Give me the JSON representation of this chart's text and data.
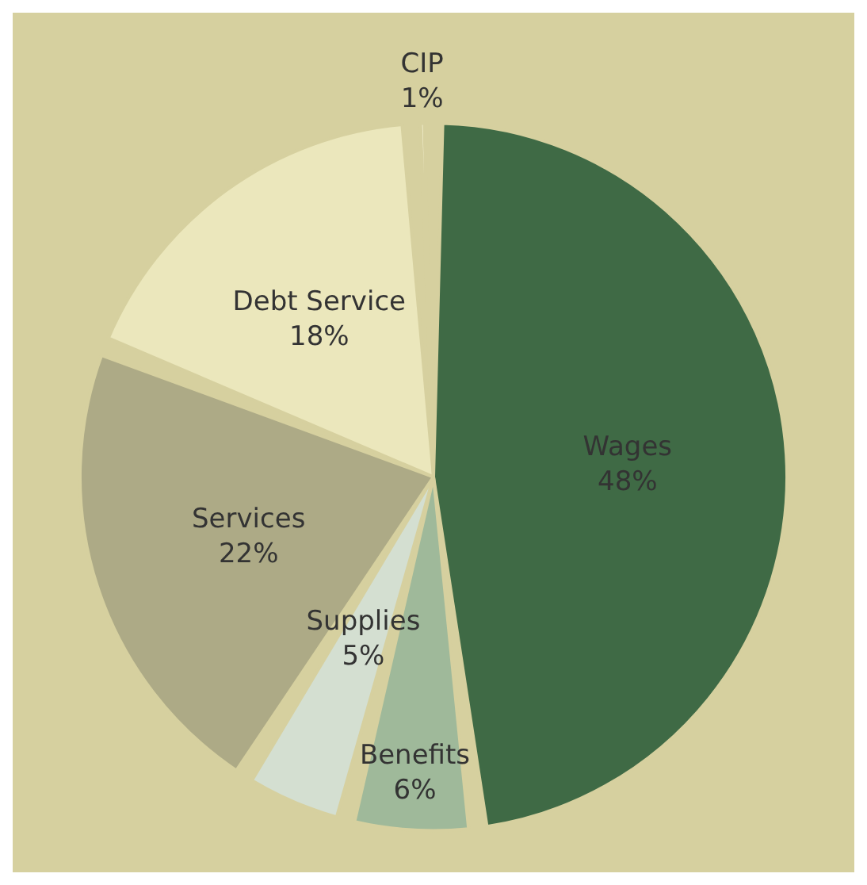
{
  "chart_data": {
    "type": "pie",
    "categories": [
      "Wages",
      "Benefits",
      "Supplies",
      "Services",
      "Debt Service",
      "CIP"
    ],
    "values": [
      48,
      6,
      5,
      22,
      18,
      1
    ],
    "value_labels": [
      "48%",
      "6%",
      "5%",
      "22%",
      "18%",
      "1%"
    ],
    "colors": [
      "#3f6a45",
      "#9fb99a",
      "#d4dfd1",
      "#adaa86",
      "#ebe7bc",
      "#fbf8dc"
    ],
    "legend": false
  }
}
